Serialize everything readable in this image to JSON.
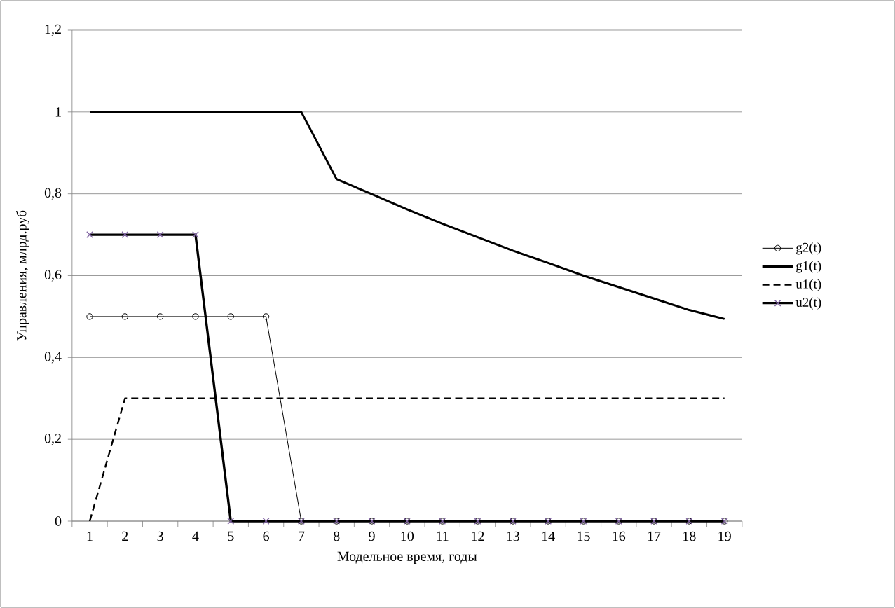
{
  "chart_data": {
    "type": "line",
    "xlabel": "Модельное время, годы",
    "ylabel": "Управления, млрд.руб",
    "categories": [
      "1",
      "2",
      "3",
      "4",
      "5",
      "6",
      "7",
      "8",
      "9",
      "10",
      "11",
      "12",
      "13",
      "14",
      "15",
      "16",
      "17",
      "18",
      "19"
    ],
    "series": [
      {
        "name": "g2(t)",
        "color": "#000000",
        "marker": "circle",
        "line_style": "solid",
        "values": [
          0.5,
          0.5,
          0.5,
          0.5,
          0.5,
          0.5,
          0,
          0,
          0,
          0,
          0,
          0,
          0,
          0,
          0,
          0,
          0,
          0,
          0
        ]
      },
      {
        "name": "g1(t)",
        "color": "#000000",
        "marker": "none",
        "line_style": "solid",
        "values": [
          1,
          1,
          1,
          1,
          1,
          1,
          1,
          0.836,
          0.799,
          0.762,
          0.727,
          0.694,
          0.661,
          0.631,
          0.6,
          0.572,
          0.544,
          0.516,
          0.494
        ]
      },
      {
        "name": "u1(t)",
        "color": "#000000",
        "marker": "none",
        "line_style": "dashed",
        "values": [
          0,
          0.3,
          0.3,
          0.3,
          0.3,
          0.3,
          0.3,
          0.3,
          0.3,
          0.3,
          0.3,
          0.3,
          0.3,
          0.3,
          0.3,
          0.3,
          0.3,
          0.3,
          0.3
        ]
      },
      {
        "name": "u2(t)",
        "color": "#000000",
        "marker": "cross",
        "line_style": "solid",
        "values": [
          0.7,
          0.7,
          0.7,
          0.7,
          0,
          0,
          0,
          0,
          0,
          0,
          0,
          0,
          0,
          0,
          0,
          0,
          0,
          0,
          0
        ]
      }
    ],
    "ylim": [
      0,
      1.2
    ],
    "yticks": [
      0,
      {
        "value": 0.2,
        "label": "0,2"
      },
      {
        "value": 0.4,
        "label": "0,4"
      },
      {
        "value": 0.6,
        "label": "0,6"
      },
      {
        "value": 0.8,
        "label": "0,8"
      },
      1,
      {
        "value": 1.2,
        "label": "1,2"
      }
    ],
    "grid": "y",
    "legend": "right"
  }
}
